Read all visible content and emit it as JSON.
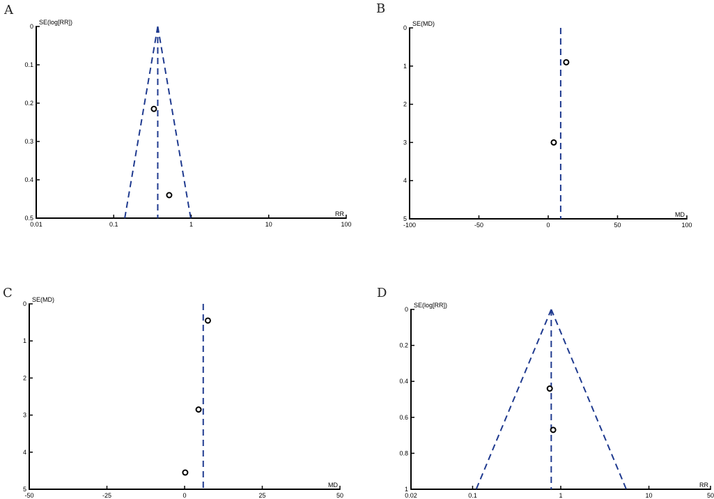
{
  "chart_data": [
    {
      "panel": "A",
      "type": "scatter",
      "xlabel": "RR",
      "ylabel": "SE(log[RR])",
      "x_scale": "log",
      "xlim": [
        0.01,
        100
      ],
      "ylim": [
        0,
        0.5
      ],
      "y_inverted": true,
      "x_ticks": [
        0.01,
        0.1,
        1,
        10,
        100
      ],
      "x_tick_labels": [
        "0.01",
        "0.1",
        "1",
        "10",
        "100"
      ],
      "y_ticks": [
        0,
        0.1,
        0.2,
        0.3,
        0.4,
        0.5
      ],
      "y_tick_labels": [
        "0",
        "0.1",
        "0.2",
        "0.3",
        "0.4",
        "0.5"
      ],
      "pooled_estimate": 0.37,
      "funnel": true,
      "points": [
        {
          "x": 0.33,
          "y": 0.215
        },
        {
          "x": 0.52,
          "y": 0.44
        }
      ]
    },
    {
      "panel": "B",
      "type": "scatter",
      "xlabel": "MD",
      "ylabel": "SE(MD)",
      "x_scale": "linear",
      "xlim": [
        -100,
        100
      ],
      "ylim": [
        0,
        5
      ],
      "y_inverted": true,
      "x_ticks": [
        -100,
        -50,
        0,
        50,
        100
      ],
      "x_tick_labels": [
        "-100",
        "-50",
        "0",
        "50",
        "100"
      ],
      "y_ticks": [
        0,
        1,
        2,
        3,
        4,
        5
      ],
      "y_tick_labels": [
        "0",
        "1",
        "2",
        "3",
        "4",
        "5"
      ],
      "pooled_estimate": 9,
      "funnel": false,
      "points": [
        {
          "x": 13,
          "y": 0.9
        },
        {
          "x": 4,
          "y": 3.0
        }
      ]
    },
    {
      "panel": "C",
      "type": "scatter",
      "xlabel": "MD",
      "ylabel": "SE(MD)",
      "x_scale": "linear",
      "xlim": [
        -50,
        50
      ],
      "ylim": [
        0,
        5
      ],
      "y_inverted": true,
      "x_ticks": [
        -50,
        -25,
        0,
        25,
        50
      ],
      "x_tick_labels": [
        "-50",
        "-25",
        "0",
        "25",
        "50"
      ],
      "y_ticks": [
        0,
        1,
        2,
        3,
        4,
        5
      ],
      "y_tick_labels": [
        "0",
        "1",
        "2",
        "3",
        "4",
        "5"
      ],
      "pooled_estimate": 6,
      "funnel": false,
      "points": [
        {
          "x": 7.5,
          "y": 0.45
        },
        {
          "x": 4.5,
          "y": 2.85
        },
        {
          "x": 0.2,
          "y": 4.55
        }
      ]
    },
    {
      "panel": "D",
      "type": "scatter",
      "xlabel": "RR",
      "ylabel": "SE(log[RR])",
      "x_scale": "log",
      "xlim": [
        0.02,
        50
      ],
      "ylim": [
        0,
        1
      ],
      "y_inverted": true,
      "x_ticks": [
        0.02,
        0.1,
        1,
        10,
        50
      ],
      "x_tick_labels": [
        "0.02",
        "0.1",
        "1",
        "10",
        "50"
      ],
      "y_ticks": [
        0,
        0.2,
        0.4,
        0.6,
        0.8,
        1
      ],
      "y_tick_labels": [
        "0",
        "0.2",
        "0.4",
        "0.6",
        "0.8",
        "1"
      ],
      "pooled_estimate": 0.78,
      "funnel": true,
      "points": [
        {
          "x": 0.75,
          "y": 0.44
        },
        {
          "x": 0.82,
          "y": 0.67
        }
      ]
    }
  ]
}
